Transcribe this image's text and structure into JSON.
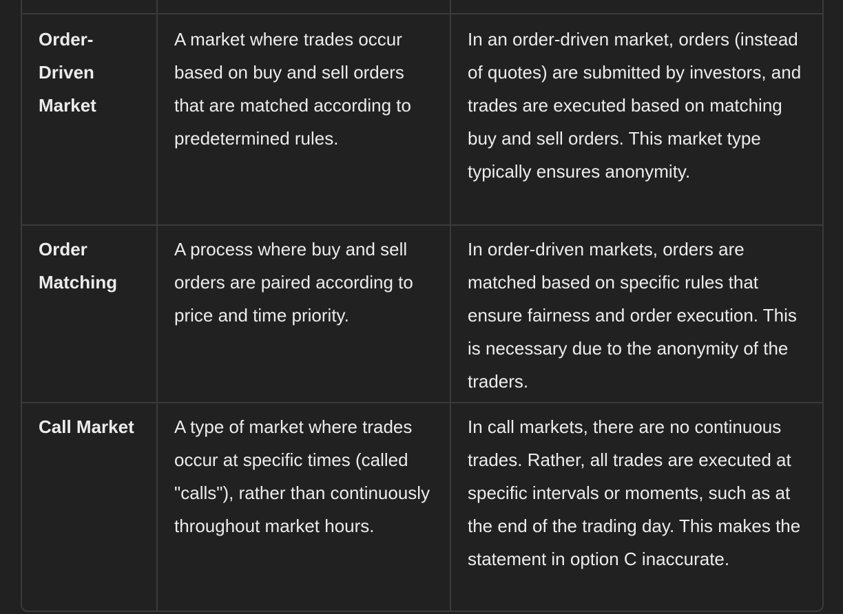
{
  "table": {
    "rows": [
      {
        "term": "Order-Driven Market",
        "definition": "A market where trades occur based on buy and sell orders that are matched according to predetermined rules.",
        "explanation": "In an order-driven market, orders (instead of quotes) are submitted by investors, and trades are executed based on matching buy and sell orders. This market type typically ensures anonymity."
      },
      {
        "term": "Order Matching",
        "definition": "A process where buy and sell orders are paired according to price and time priority.",
        "explanation": "In order-driven markets, orders are matched based on specific rules that ensure fairness and order execution. This is necessary due to the anonymity of the traders."
      },
      {
        "term": "Call Market",
        "definition": "A type of market where trades occur at specific times (called \"calls\"), rather than continuously throughout market hours.",
        "explanation": "In call markets, there are no continuous trades. Rather, all trades are executed at specific intervals or moments, such as at the end of the trading day. This makes the statement in option C inaccurate."
      }
    ]
  }
}
